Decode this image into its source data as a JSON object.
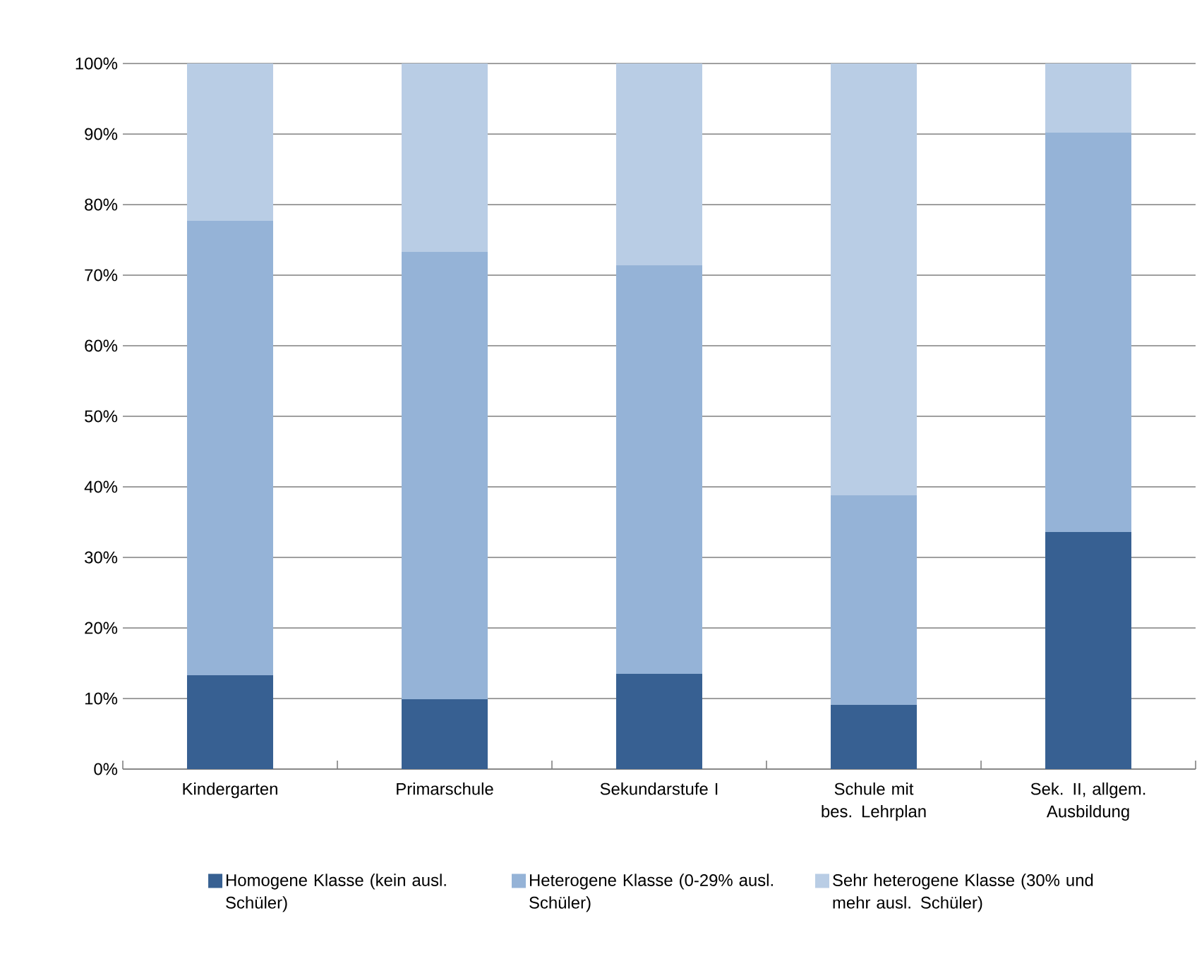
{
  "chart_data": {
    "type": "bar",
    "stacked": true,
    "categories": [
      "Kindergarten",
      "Primarschule",
      "Sekundarstufe I",
      "Schule mit bes. Lehrplan",
      "Sek. II, allgem. Ausbildung"
    ],
    "series": [
      {
        "name": "Homogene Klasse (kein ausl. Schüler)",
        "color": "#376092",
        "values": [
          13.3,
          9.9,
          13.5,
          9.1,
          33.6
        ]
      },
      {
        "name": "Heterogene Klasse (0-29% ausl. Schüler)",
        "color": "#95b3d7",
        "values": [
          64.4,
          63.4,
          57.9,
          29.7,
          56.6
        ]
      },
      {
        "name": "Sehr heterogene Klasse (30% und mehr ausl. Schüler)",
        "color": "#b9cde5",
        "values": [
          22.3,
          26.7,
          28.6,
          61.2,
          9.8
        ]
      }
    ],
    "ylim": [
      0,
      100
    ],
    "yticks": [
      {
        "value": 0,
        "label": "0%"
      },
      {
        "value": 10,
        "label": "10%"
      },
      {
        "value": 20,
        "label": "20%"
      },
      {
        "value": 30,
        "label": "30%"
      },
      {
        "value": 40,
        "label": "40%"
      },
      {
        "value": 50,
        "label": "50%"
      },
      {
        "value": 60,
        "label": "60%"
      },
      {
        "value": 70,
        "label": "70%"
      },
      {
        "value": 80,
        "label": "80%"
      },
      {
        "value": 90,
        "label": "90%"
      },
      {
        "value": 100,
        "label": "100%"
      }
    ],
    "grid": "y",
    "legend": "bottom"
  }
}
